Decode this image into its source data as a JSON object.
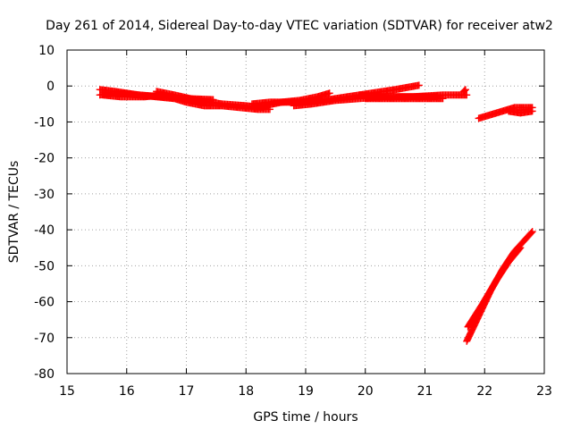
{
  "chart_data": {
    "type": "scatter",
    "title": "Day 261 of 2014, Sidereal Day-to-day VTEC variation (SDTVAR) for receiver atw2",
    "xlabel": "GPS time / hours",
    "ylabel": "SDTVAR / TECUs",
    "xlim": [
      15,
      23
    ],
    "ylim": [
      -80,
      10
    ],
    "xticks": [
      15,
      16,
      17,
      18,
      19,
      20,
      21,
      22,
      23
    ],
    "yticks": [
      10,
      0,
      -10,
      -20,
      -30,
      -40,
      -50,
      -60,
      -70,
      -80
    ],
    "grid": true,
    "marker": "+",
    "color": "#ff0000",
    "tracks": [
      {
        "x": [
          15.55,
          15.8,
          16.2,
          16.5,
          16.8,
          17.0,
          17.3,
          17.6,
          17.9,
          18.2,
          18.4
        ],
        "y": [
          -2.5,
          -2.0,
          -2.5,
          -3.0,
          -3.5,
          -4.5,
          -5.5,
          -5.5,
          -6.0,
          -6.5,
          -6.5
        ]
      },
      {
        "x": [
          15.55,
          15.8,
          16.2,
          16.6,
          17.0,
          17.45
        ],
        "y": [
          -1.0,
          -1.5,
          -2.5,
          -3.0,
          -3.5,
          -3.8
        ]
      },
      {
        "x": [
          15.6,
          15.9,
          16.3,
          16.6
        ],
        "y": [
          -2.5,
          -3.0,
          -3.0,
          -2.5
        ]
      },
      {
        "x": [
          16.5,
          16.8,
          17.2,
          17.6,
          18.0,
          18.3
        ],
        "y": [
          -1.5,
          -2.5,
          -4.0,
          -5.0,
          -5.5,
          -6.0
        ]
      },
      {
        "x": [
          18.1,
          18.4,
          18.7,
          19.0,
          19.3,
          19.7,
          20.1,
          20.5,
          20.9
        ],
        "y": [
          -5.0,
          -4.5,
          -4.5,
          -4.5,
          -4.0,
          -3.0,
          -2.0,
          -1.0,
          0.2
        ]
      },
      {
        "x": [
          18.3,
          18.6,
          18.9,
          19.2,
          19.4
        ],
        "y": [
          -5.5,
          -4.5,
          -4.0,
          -3.0,
          -2.0
        ]
      },
      {
        "x": [
          18.8,
          19.1,
          19.5,
          19.9,
          20.3,
          20.8,
          21.3,
          21.7
        ],
        "y": [
          -5.5,
          -5.0,
          -4.0,
          -3.5,
          -3.0,
          -3.0,
          -2.5,
          -2.5
        ]
      },
      {
        "x": [
          19.9,
          20.3,
          20.7,
          21.2
        ],
        "y": [
          -2.5,
          -3.0,
          -3.0,
          -3.0
        ]
      },
      {
        "x": [
          20.0,
          20.5,
          21.0,
          21.3
        ],
        "y": [
          -3.5,
          -3.5,
          -3.5,
          -3.5
        ]
      },
      {
        "x": [
          21.65,
          21.68
        ],
        "y": [
          -1.5,
          -1.0
        ]
      },
      {
        "x": [
          21.9,
          22.1,
          22.3,
          22.5,
          22.8
        ],
        "y": [
          -9.0,
          -8.0,
          -7.0,
          -6.0,
          -6.0
        ]
      },
      {
        "x": [
          22.4,
          22.6,
          22.8
        ],
        "y": [
          -7.0,
          -7.5,
          -7.0
        ]
      },
      {
        "x": [
          21.7,
          21.9,
          22.1,
          22.3,
          22.5,
          22.8
        ],
        "y": [
          -71.0,
          -64.0,
          -57.0,
          -51.0,
          -46.0,
          -40.5
        ]
      },
      {
        "x": [
          21.72,
          21.95,
          22.2,
          22.4,
          22.6
        ],
        "y": [
          -67.0,
          -61.0,
          -54.0,
          -49.0,
          -45.0
        ]
      }
    ]
  }
}
